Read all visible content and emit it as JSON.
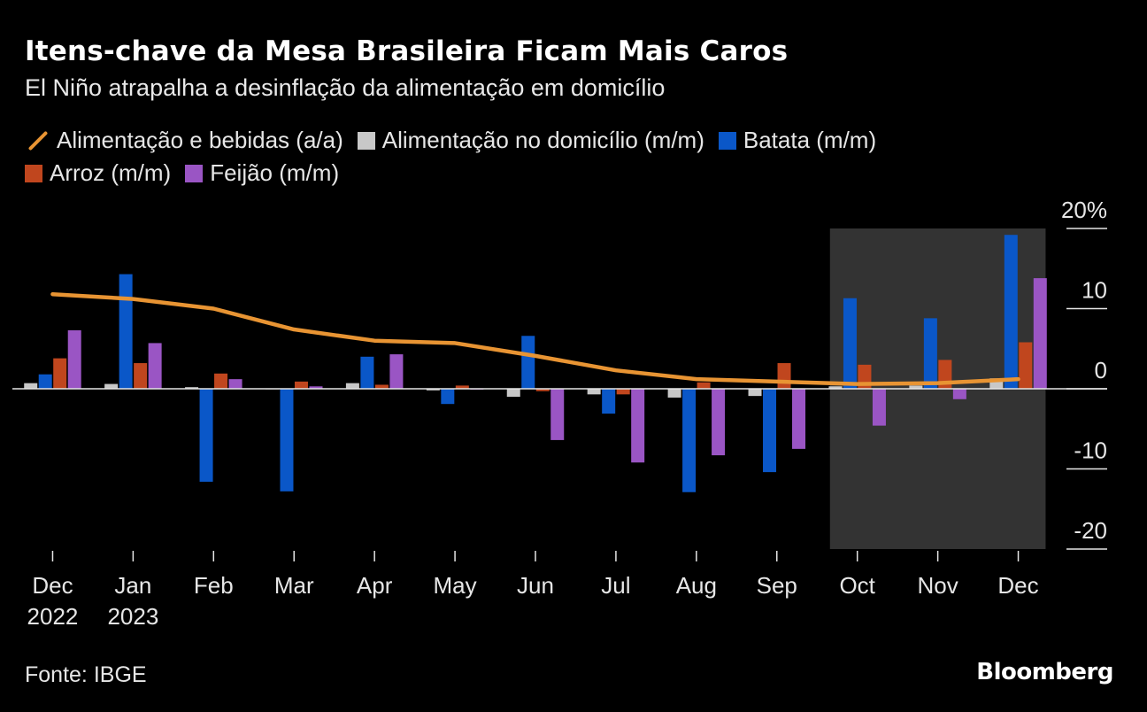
{
  "header": {
    "title": "Itens-chave da Mesa Brasileira Ficam Mais Caros",
    "subtitle": "El Niño atrapalha a desinflação da alimentação em domicílio"
  },
  "legend": {
    "items": [
      {
        "label": "Alimentação e bebidas (a/a)",
        "color": "#e89433",
        "kind": "line"
      },
      {
        "label": "Alimentação no domicílio (m/m)",
        "color": "#c8c8c8",
        "kind": "bar"
      },
      {
        "label": "Batata (m/m)",
        "color": "#0a57c8",
        "kind": "bar"
      },
      {
        "label": "Arroz (m/m)",
        "color": "#c0461e",
        "kind": "bar"
      },
      {
        "label": "Feijão (m/m)",
        "color": "#9a55c4",
        "kind": "bar"
      }
    ]
  },
  "chart_data": {
    "type": "bar",
    "categories": [
      "Dec 2022",
      "Jan 2023",
      "Feb",
      "Mar",
      "Apr",
      "May",
      "Jun",
      "Jul",
      "Aug",
      "Sep",
      "Oct",
      "Nov",
      "Dec"
    ],
    "x_tick_labels": [
      {
        "line1": "Dec",
        "line2": "2022"
      },
      {
        "line1": "Jan",
        "line2": "2023"
      },
      {
        "line1": "Feb",
        "line2": ""
      },
      {
        "line1": "Mar",
        "line2": ""
      },
      {
        "line1": "Apr",
        "line2": ""
      },
      {
        "line1": "May",
        "line2": ""
      },
      {
        "line1": "Jun",
        "line2": ""
      },
      {
        "line1": "Jul",
        "line2": ""
      },
      {
        "line1": "Aug",
        "line2": ""
      },
      {
        "line1": "Sep",
        "line2": ""
      },
      {
        "line1": "Oct",
        "line2": ""
      },
      {
        "line1": "Nov",
        "line2": ""
      },
      {
        "line1": "Dec",
        "line2": ""
      }
    ],
    "series": [
      {
        "name": "Alimentação no domicílio (m/m)",
        "type": "bar",
        "color": "#c8c8c8",
        "values": [
          0.7,
          0.6,
          0.2,
          0.0,
          0.7,
          -0.2,
          -1.0,
          -0.7,
          -1.1,
          -0.9,
          0.3,
          0.4,
          1.3
        ]
      },
      {
        "name": "Batata (m/m)",
        "type": "bar",
        "color": "#0a57c8",
        "values": [
          1.8,
          14.3,
          -11.6,
          -12.8,
          4.0,
          -1.9,
          6.6,
          -3.1,
          -12.9,
          -10.4,
          11.3,
          8.8,
          19.2
        ]
      },
      {
        "name": "Arroz (m/m)",
        "type": "bar",
        "color": "#c0461e",
        "values": [
          3.8,
          3.2,
          1.9,
          0.9,
          0.5,
          0.4,
          -0.3,
          -0.7,
          0.8,
          3.2,
          3.0,
          3.6,
          5.8
        ]
      },
      {
        "name": "Feijão (m/m)",
        "type": "bar",
        "color": "#9a55c4",
        "values": [
          7.3,
          5.7,
          1.2,
          0.3,
          4.3,
          -0.1,
          -6.4,
          -9.2,
          -8.3,
          -7.5,
          -4.6,
          -1.3,
          13.8
        ]
      },
      {
        "name": "Alimentação e bebidas (a/a)",
        "type": "line",
        "color": "#e89433",
        "values": [
          11.8,
          11.2,
          10.0,
          7.4,
          6.0,
          5.7,
          4.1,
          2.3,
          1.2,
          0.9,
          0.6,
          0.7,
          1.2
        ]
      }
    ],
    "ylim": [
      -20,
      20
    ],
    "yticks": [
      {
        "value": 20,
        "label": "20%"
      },
      {
        "value": 10,
        "label": "10"
      },
      {
        "value": 0,
        "label": "0"
      },
      {
        "value": -10,
        "label": "-10"
      },
      {
        "value": -20,
        "label": "-20"
      }
    ],
    "highlight": {
      "from": "Oct",
      "to": "Dec",
      "color": "#333333"
    },
    "y_axis_position": "right",
    "grid": false
  },
  "footer": {
    "source": "Fonte: IBGE",
    "brand": "Bloomberg"
  }
}
